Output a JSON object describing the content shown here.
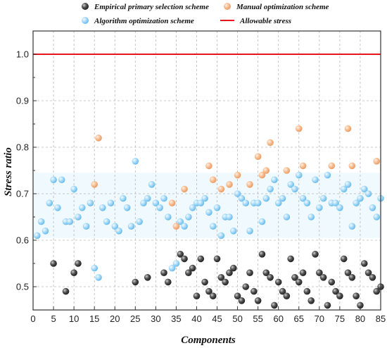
{
  "chart_data": {
    "type": "scatter",
    "xlabel": "Components",
    "ylabel": "Stress ratio",
    "xlim": [
      0,
      85
    ],
    "ylim": [
      0.45,
      1.05
    ],
    "xticks": [
      0,
      5,
      10,
      15,
      20,
      25,
      30,
      35,
      40,
      45,
      50,
      55,
      60,
      65,
      70,
      75,
      80,
      85
    ],
    "yticks": [
      0.5,
      0.6,
      0.7,
      0.8,
      0.9,
      1.0
    ],
    "ytick_labels": [
      "0.5",
      "0.6",
      "0.7",
      "0.8",
      "0.9",
      "1.0"
    ],
    "grid": true,
    "legend_position": "top",
    "allowable_stress": {
      "name": "Allowable stress",
      "value": 1.0,
      "color": "#e8141c"
    },
    "series": [
      {
        "name": "Empirical primary selection scheme",
        "color": "#333333",
        "points": [
          [
            5,
            0.55
          ],
          [
            8,
            0.49
          ],
          [
            10,
            0.53
          ],
          [
            11,
            0.55
          ],
          [
            25,
            0.51
          ],
          [
            28,
            0.52
          ],
          [
            32,
            0.53
          ],
          [
            33,
            0.51
          ],
          [
            36,
            0.57
          ],
          [
            37,
            0.56
          ],
          [
            38,
            0.53
          ],
          [
            39,
            0.54
          ],
          [
            40,
            0.48
          ],
          [
            41,
            0.56
          ],
          [
            42,
            0.51
          ],
          [
            43,
            0.49
          ],
          [
            44,
            0.48
          ],
          [
            45,
            0.56
          ],
          [
            46,
            0.52
          ],
          [
            47,
            0.51
          ],
          [
            48,
            0.53
          ],
          [
            49,
            0.54
          ],
          [
            50,
            0.48
          ],
          [
            51,
            0.47
          ],
          [
            52,
            0.5
          ],
          [
            53,
            0.53
          ],
          [
            54,
            0.49
          ],
          [
            55,
            0.47
          ],
          [
            56,
            0.57
          ],
          [
            57,
            0.53
          ],
          [
            58,
            0.52
          ],
          [
            59,
            0.46
          ],
          [
            60,
            0.51
          ],
          [
            61,
            0.49
          ],
          [
            62,
            0.48
          ],
          [
            63,
            0.56
          ],
          [
            64,
            0.52
          ],
          [
            65,
            0.51
          ],
          [
            66,
            0.53
          ],
          [
            67,
            0.49
          ],
          [
            68,
            0.47
          ],
          [
            69,
            0.57
          ],
          [
            70,
            0.53
          ],
          [
            71,
            0.52
          ],
          [
            72,
            0.46
          ],
          [
            73,
            0.51
          ],
          [
            74,
            0.49
          ],
          [
            75,
            0.48
          ],
          [
            76,
            0.56
          ],
          [
            77,
            0.53
          ],
          [
            78,
            0.52
          ],
          [
            79,
            0.48
          ],
          [
            80,
            0.46
          ],
          [
            81,
            0.55
          ],
          [
            82,
            0.53
          ],
          [
            83,
            0.52
          ],
          [
            84,
            0.49
          ],
          [
            85,
            0.5
          ]
        ]
      },
      {
        "name": "Manual optimization scheme",
        "color": "#f4a46e",
        "points": [
          [
            15,
            0.72
          ],
          [
            16,
            0.82
          ],
          [
            34,
            0.68
          ],
          [
            35,
            0.63
          ],
          [
            37,
            0.71
          ],
          [
            43,
            0.76
          ],
          [
            44,
            0.73
          ],
          [
            46,
            0.71
          ],
          [
            48,
            0.72
          ],
          [
            50,
            0.74
          ],
          [
            53,
            0.72
          ],
          [
            55,
            0.78
          ],
          [
            56,
            0.74
          ],
          [
            57,
            0.75
          ],
          [
            58,
            0.81
          ],
          [
            62,
            0.75
          ],
          [
            65,
            0.84
          ],
          [
            66,
            0.76
          ],
          [
            73,
            0.76
          ],
          [
            77,
            0.84
          ],
          [
            78,
            0.76
          ],
          [
            84,
            0.77
          ]
        ]
      },
      {
        "name": "Algorithm optimization scheme",
        "color": "#74c2f0",
        "points": [
          [
            1,
            0.61
          ],
          [
            2,
            0.64
          ],
          [
            3,
            0.62
          ],
          [
            4,
            0.68
          ],
          [
            5,
            0.73
          ],
          [
            6,
            0.67
          ],
          [
            7,
            0.73
          ],
          [
            8,
            0.64
          ],
          [
            9,
            0.64
          ],
          [
            10,
            0.71
          ],
          [
            11,
            0.65
          ],
          [
            12,
            0.67
          ],
          [
            13,
            0.63
          ],
          [
            14,
            0.68
          ],
          [
            15,
            0.54
          ],
          [
            16,
            0.52
          ],
          [
            17,
            0.67
          ],
          [
            18,
            0.64
          ],
          [
            19,
            0.68
          ],
          [
            20,
            0.63
          ],
          [
            21,
            0.62
          ],
          [
            22,
            0.69
          ],
          [
            23,
            0.67
          ],
          [
            24,
            0.63
          ],
          [
            25,
            0.77
          ],
          [
            26,
            0.64
          ],
          [
            27,
            0.68
          ],
          [
            28,
            0.69
          ],
          [
            29,
            0.72
          ],
          [
            30,
            0.68
          ],
          [
            31,
            0.67
          ],
          [
            32,
            0.69
          ],
          [
            33,
            0.65
          ],
          [
            34,
            0.54
          ],
          [
            35,
            0.55
          ],
          [
            36,
            0.64
          ],
          [
            37,
            0.63
          ],
          [
            38,
            0.65
          ],
          [
            39,
            0.67
          ],
          [
            40,
            0.68
          ],
          [
            41,
            0.68
          ],
          [
            42,
            0.69
          ],
          [
            43,
            0.66
          ],
          [
            44,
            0.63
          ],
          [
            45,
            0.67
          ],
          [
            46,
            0.61
          ],
          [
            47,
            0.65
          ],
          [
            48,
            0.65
          ],
          [
            49,
            0.62
          ],
          [
            50,
            0.7
          ],
          [
            51,
            0.69
          ],
          [
            52,
            0.68
          ],
          [
            53,
            0.62
          ],
          [
            54,
            0.68
          ],
          [
            55,
            0.68
          ],
          [
            56,
            0.64
          ],
          [
            57,
            0.69
          ],
          [
            58,
            0.71
          ],
          [
            59,
            0.73
          ],
          [
            60,
            0.68
          ],
          [
            61,
            0.69
          ],
          [
            62,
            0.65
          ],
          [
            63,
            0.72
          ],
          [
            64,
            0.71
          ],
          [
            65,
            0.74
          ],
          [
            66,
            0.69
          ],
          [
            67,
            0.68
          ],
          [
            68,
            0.65
          ],
          [
            69,
            0.73
          ],
          [
            70,
            0.67
          ],
          [
            71,
            0.69
          ],
          [
            72,
            0.74
          ],
          [
            73,
            0.68
          ],
          [
            74,
            0.68
          ],
          [
            75,
            0.67
          ],
          [
            76,
            0.71
          ],
          [
            77,
            0.72
          ],
          [
            78,
            0.63
          ],
          [
            79,
            0.68
          ],
          [
            80,
            0.69
          ],
          [
            81,
            0.71
          ],
          [
            82,
            0.7
          ],
          [
            83,
            0.67
          ],
          [
            84,
            0.65
          ],
          [
            85,
            0.69
          ]
        ]
      }
    ]
  }
}
